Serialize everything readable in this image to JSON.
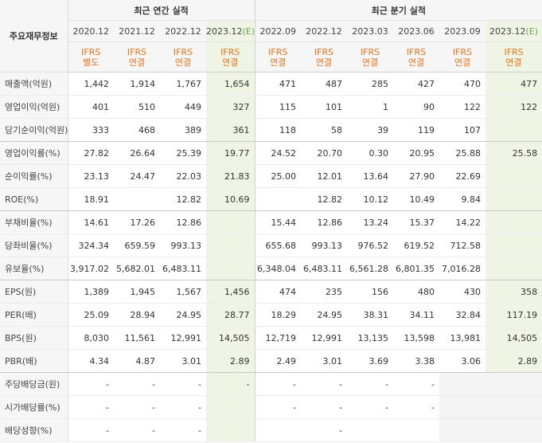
{
  "header": {
    "row_label": "주요재무정보",
    "annual_title": "최근 연간 실적",
    "quarterly_title": "최근 분기 실적",
    "estimate_mark": "(E)"
  },
  "periods": [
    {
      "label": "2020.12",
      "est": false,
      "std1": "IFRS",
      "std2": "별도"
    },
    {
      "label": "2021.12",
      "est": false,
      "std1": "IFRS",
      "std2": "연결"
    },
    {
      "label": "2022.12",
      "est": false,
      "std1": "IFRS",
      "std2": "연결"
    },
    {
      "label": "2023.12",
      "est": true,
      "std1": "IFRS",
      "std2": "연결"
    },
    {
      "label": "2022.09",
      "est": false,
      "std1": "IFRS",
      "std2": "연결"
    },
    {
      "label": "2022.12",
      "est": false,
      "std1": "IFRS",
      "std2": "연결"
    },
    {
      "label": "2023.03",
      "est": false,
      "std1": "IFRS",
      "std2": "연결"
    },
    {
      "label": "2023.06",
      "est": false,
      "std1": "IFRS",
      "std2": "연결"
    },
    {
      "label": "2023.09",
      "est": false,
      "std1": "IFRS",
      "std2": "연결"
    },
    {
      "label": "2023.12",
      "est": true,
      "std1": "IFRS",
      "std2": "연결"
    }
  ],
  "rows": [
    {
      "label": "매출액(억원)",
      "values": [
        "1,442",
        "1,914",
        "1,767",
        "1,654",
        "471",
        "487",
        "285",
        "427",
        "470",
        "477"
      ],
      "groupEnd": false
    },
    {
      "label": "영업이익(억원)",
      "values": [
        "401",
        "510",
        "449",
        "327",
        "115",
        "101",
        "1",
        "90",
        "122",
        "122"
      ],
      "groupEnd": false
    },
    {
      "label": "당기순이익(억원)",
      "values": [
        "333",
        "468",
        "389",
        "361",
        "118",
        "58",
        "39",
        "119",
        "107",
        ""
      ],
      "groupEnd": true
    },
    {
      "label": "영업이익률(%)",
      "values": [
        "27.82",
        "26.64",
        "25.39",
        "19.77",
        "24.52",
        "20.70",
        "0.30",
        "20.95",
        "25.88",
        "25.58"
      ],
      "groupEnd": false
    },
    {
      "label": "순이익률(%)",
      "values": [
        "23.13",
        "24.47",
        "22.03",
        "21.83",
        "25.00",
        "12.01",
        "13.64",
        "27.90",
        "22.69",
        ""
      ],
      "groupEnd": false
    },
    {
      "label": "ROE(%)",
      "values": [
        "18.91",
        "",
        "12.82",
        "10.69",
        "",
        "12.82",
        "10.12",
        "10.49",
        "9.84",
        ""
      ],
      "groupEnd": true
    },
    {
      "label": "부채비율(%)",
      "values": [
        "14.61",
        "17.26",
        "12.86",
        "",
        "15.44",
        "12.86",
        "13.24",
        "15.37",
        "14.22",
        ""
      ],
      "groupEnd": false
    },
    {
      "label": "당좌비율(%)",
      "values": [
        "324.34",
        "659.59",
        "993.13",
        "",
        "655.68",
        "993.13",
        "976.52",
        "619.52",
        "712.58",
        ""
      ],
      "groupEnd": false
    },
    {
      "label": "유보율(%)",
      "values": [
        "3,917.02",
        "5,682.01",
        "6,483.11",
        "",
        "6,348.04",
        "6,483.11",
        "6,561.28",
        "6,801.35",
        "7,016.28",
        ""
      ],
      "groupEnd": true
    },
    {
      "label": "EPS(원)",
      "values": [
        "1,389",
        "1,945",
        "1,567",
        "1,456",
        "474",
        "235",
        "156",
        "480",
        "430",
        "358"
      ],
      "groupEnd": false
    },
    {
      "label": "PER(배)",
      "values": [
        "25.09",
        "28.94",
        "24.95",
        "28.77",
        "18.29",
        "24.95",
        "38.31",
        "34.11",
        "32.84",
        "117.19"
      ],
      "groupEnd": false
    },
    {
      "label": "BPS(원)",
      "values": [
        "8,030",
        "11,561",
        "12,991",
        "14,505",
        "12,719",
        "12,991",
        "13,135",
        "13,598",
        "13,981",
        "14,505"
      ],
      "groupEnd": false
    },
    {
      "label": "PBR(배)",
      "values": [
        "4.34",
        "4.87",
        "3.01",
        "2.89",
        "2.49",
        "3.01",
        "3.69",
        "3.38",
        "3.06",
        "2.89"
      ],
      "groupEnd": true
    },
    {
      "label": "주당배당금(원)",
      "values": [
        "-",
        "-",
        "-",
        "-",
        "-",
        "-",
        "-",
        "-",
        "",
        ""
      ],
      "groupEnd": false,
      "grayFrom": 8
    },
    {
      "label": "시가배당률(%)",
      "values": [
        "-",
        "-",
        "-",
        "",
        "-",
        "-",
        "-",
        "-",
        "",
        ""
      ],
      "groupEnd": false,
      "grayFrom": 8
    },
    {
      "label": "배당성향(%)",
      "values": [
        "-",
        "-",
        "-",
        "",
        "",
        "-",
        "",
        "",
        "",
        ""
      ],
      "groupEnd": false,
      "grayFrom": 8
    }
  ]
}
